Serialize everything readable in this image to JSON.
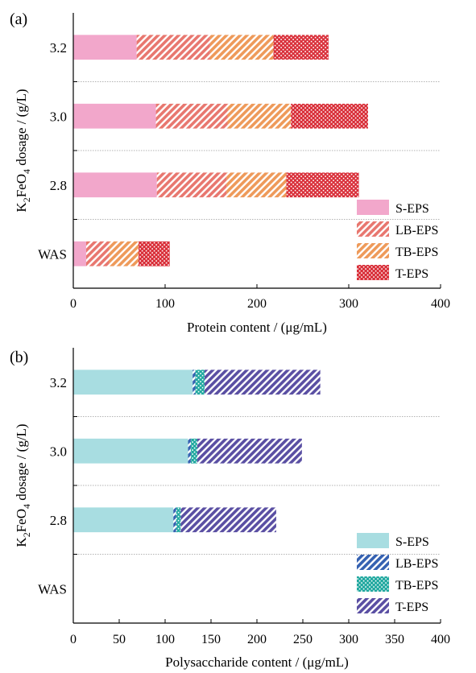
{
  "chart_data": [
    {
      "type": "bar",
      "orientation": "horizontal",
      "stacked": true,
      "panel_label": "(a)",
      "title": "",
      "xlabel": "Protein content / (μg/mL)",
      "ylabel": {
        "pre": "K",
        "sub1": "2",
        "mid": "FeO",
        "sub2": "4",
        "post": " dosage / (g/L)"
      },
      "xlim": [
        0,
        400
      ],
      "xticks": [
        "0",
        "100",
        "200",
        "300",
        "400"
      ],
      "categories": [
        "3.2",
        "3.0",
        "2.8",
        "WAS"
      ],
      "series": [
        {
          "name": "S-EPS",
          "color": "#f2a7cb",
          "pattern": "solid",
          "values": [
            69,
            90,
            91,
            14
          ]
        },
        {
          "name": "LB-EPS",
          "color": "#e8776f",
          "pattern": "diagonal",
          "values": [
            80,
            78,
            76,
            25
          ]
        },
        {
          "name": "TB-EPS",
          "color": "#ee9a5a",
          "pattern": "diagonal",
          "values": [
            69,
            69,
            65,
            32
          ]
        },
        {
          "name": "T-EPS",
          "color": "#d9303a",
          "pattern": "crosshatch",
          "values": [
            60,
            84,
            79,
            34
          ]
        }
      ],
      "legend_position": "bottom-right",
      "grid": "dotted separators between categories"
    },
    {
      "type": "bar",
      "orientation": "horizontal",
      "stacked": true,
      "panel_label": "(b)",
      "title": "",
      "xlabel": "Polysaccharide content / (μg/mL)",
      "ylabel": {
        "pre": "K",
        "sub1": "2",
        "mid": "FeO",
        "sub2": "4",
        "post": " dosage / (g/L)"
      },
      "xlim": [
        0,
        400
      ],
      "xticks": [
        "0",
        "50",
        "100",
        "150",
        "200",
        "250",
        "300",
        "350",
        "400"
      ],
      "categories": [
        "3.2",
        "3.0",
        "2.8",
        "WAS"
      ],
      "series": [
        {
          "name": "S-EPS",
          "color": "#a8dde1",
          "pattern": "solid",
          "values": [
            130,
            125,
            109,
            0
          ]
        },
        {
          "name": "LB-EPS",
          "color": "#3561b1",
          "pattern": "diagonal",
          "values": [
            3,
            3,
            3,
            0
          ]
        },
        {
          "name": "TB-EPS",
          "color": "#22a9a0",
          "pattern": "crosshatch",
          "values": [
            10,
            7,
            5,
            0
          ]
        },
        {
          "name": "T-EPS",
          "color": "#5a4fa3",
          "pattern": "diagonal",
          "values": [
            126,
            114,
            104,
            0
          ]
        }
      ],
      "legend_position": "bottom-right",
      "grid": "dotted separators between categories"
    }
  ]
}
